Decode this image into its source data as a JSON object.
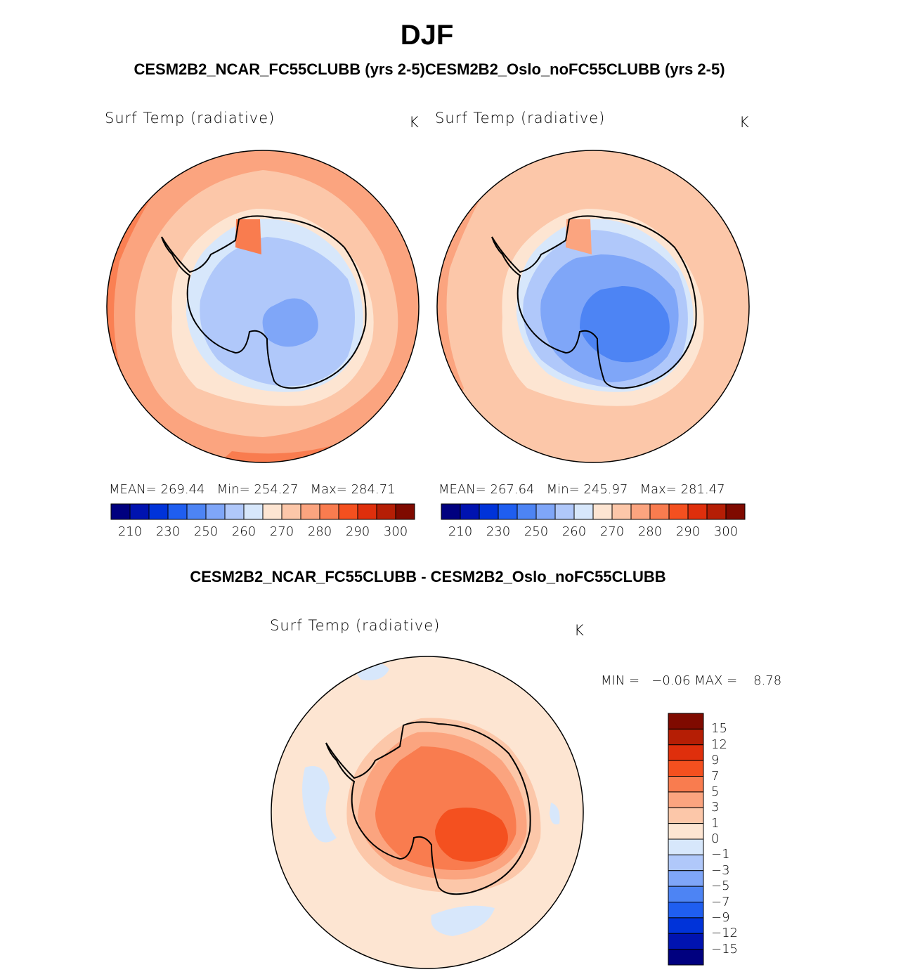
{
  "figure": {
    "title": "DJF",
    "subtitle": "CESM2B2_NCAR_FC55CLUBB (yrs 2-5)CESM2B2_Oslo_noFC55CLUBB (yrs 2-5)",
    "diff_title": "CESM2B2_NCAR_FC55CLUBB - CESM2B2_Oslo_noFC55CLUBB"
  },
  "panels": {
    "left": {
      "var_label": "Surf Temp (radiative)",
      "unit": "K",
      "mean_label": "MEAN=",
      "mean": "269.44",
      "min_label": "Min=",
      "min": "254.27",
      "max_label": "Max=",
      "max": "284.71"
    },
    "right": {
      "var_label": "Surf Temp (radiative)",
      "unit": "K",
      "mean_label": "MEAN=",
      "mean": "267.64",
      "min_label": "Min=",
      "min": "245.97",
      "max_label": "Max=",
      "max": "281.47"
    },
    "diff": {
      "var_label": "Surf Temp (radiative)",
      "unit": "K",
      "min_label": "MIN =",
      "min": "−0.06",
      "max_label": "MAX =",
      "max": "8.78"
    }
  },
  "colorbar_abs": {
    "colors": [
      "#00007f",
      "#0013b0",
      "#0033d9",
      "#1f5ef0",
      "#4d84f4",
      "#7fa6f8",
      "#b0c8fa",
      "#d7e7fb",
      "#fde5d2",
      "#fcc7a9",
      "#fba47f",
      "#f97c4f",
      "#f4501f",
      "#df2f0c",
      "#b51e05",
      "#7f0a00"
    ],
    "tick_labels": [
      "210",
      "230",
      "250",
      "260",
      "270",
      "280",
      "290",
      "300"
    ]
  },
  "colorbar_diff": {
    "colors": [
      "#7f0a00",
      "#b51e05",
      "#df2f0c",
      "#f4501f",
      "#f97c4f",
      "#fba47f",
      "#fcc7a9",
      "#fde5d2",
      "#d7e7fb",
      "#b0c8fa",
      "#7fa6f8",
      "#4d84f4",
      "#1f5ef0",
      "#0033d9",
      "#0013b0",
      "#00007f"
    ],
    "tick_labels": [
      "15",
      "12",
      "9",
      "7",
      "5",
      "3",
      "1",
      "0",
      "−1",
      "−3",
      "−5",
      "−7",
      "−9",
      "−12",
      "−15"
    ]
  }
}
